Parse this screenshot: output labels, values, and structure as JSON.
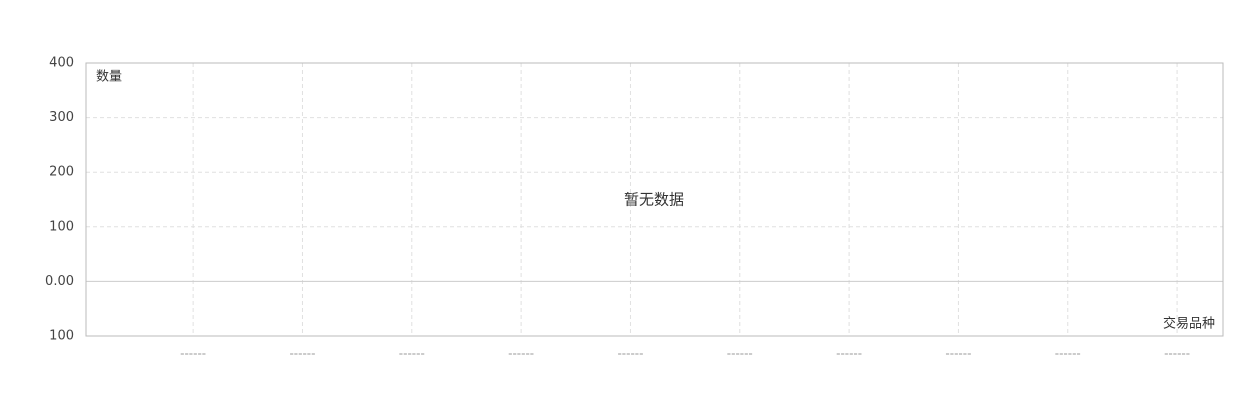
{
  "chart_data": {
    "type": "bar",
    "y_label": "数量",
    "x_label": "交易品种",
    "empty_text": "暂无数据",
    "categories": [
      "------",
      "------",
      "------",
      "------",
      "------",
      "------",
      "------",
      "------",
      "------",
      "------"
    ],
    "ylim": [
      -100,
      400
    ],
    "yticks": [
      {
        "value": -100,
        "label": "100"
      },
      {
        "value": 0,
        "label": "0.00"
      },
      100,
      200,
      300,
      400
    ],
    "grid": true
  }
}
